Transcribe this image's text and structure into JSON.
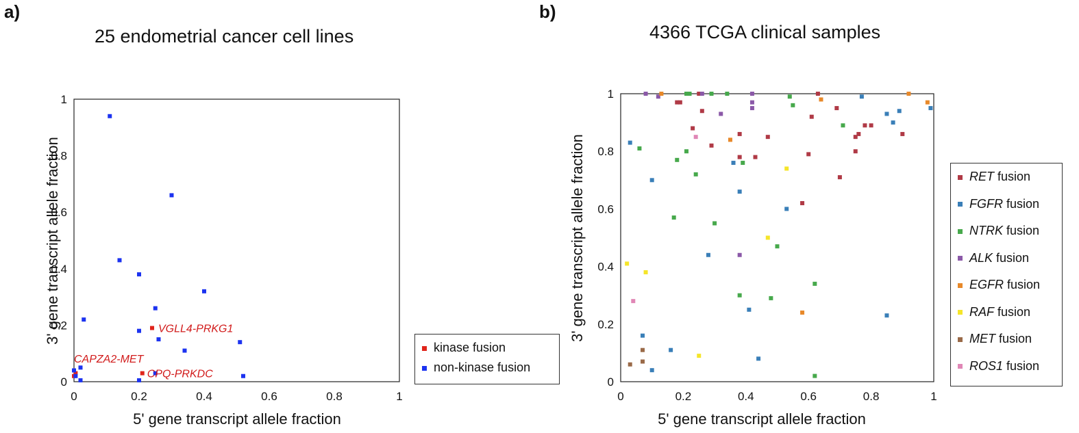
{
  "panel_a_label": "a)",
  "panel_b_label": "b)",
  "chart_data": [
    {
      "type": "scatter",
      "title": "25 endometrial cancer cell lines",
      "xlabel": "5' gene transcript allele fraction",
      "ylabel": "3' gene transcript allele fraction",
      "xlim": [
        0,
        1
      ],
      "ylim": [
        0,
        1
      ],
      "xticks": [
        "0",
        "0.2",
        "0.4",
        "0.6",
        "0.8",
        "1"
      ],
      "yticks": [
        "0",
        "0.2",
        "0.4",
        "0.6",
        "0.8",
        "1"
      ],
      "series": [
        {
          "name": "kinase fusion",
          "color": "#e0241b",
          "points": [
            [
              0.24,
              0.19
            ],
            [
              0.21,
              0.03
            ],
            [
              0.005,
              0.03
            ],
            [
              0.0,
              0.02
            ]
          ]
        },
        {
          "name": "non-kinase fusion",
          "color": "#1c33f0",
          "points": [
            [
              0.11,
              0.94
            ],
            [
              0.3,
              0.66
            ],
            [
              0.14,
              0.43
            ],
            [
              0.2,
              0.38
            ],
            [
              0.4,
              0.32
            ],
            [
              0.25,
              0.26
            ],
            [
              0.03,
              0.22
            ],
            [
              0.2,
              0.18
            ],
            [
              0.26,
              0.15
            ],
            [
              0.51,
              0.14
            ],
            [
              0.34,
              0.11
            ],
            [
              0.02,
              0.05
            ],
            [
              0.0,
              0.04
            ],
            [
              0.25,
              0.03
            ],
            [
              0.52,
              0.02
            ],
            [
              0.005,
              0.02
            ],
            [
              0.02,
              0.005
            ],
            [
              0.2,
              0.005
            ]
          ]
        }
      ],
      "annotations": [
        {
          "text": "VGLL4-PRKG1",
          "x": 0.24,
          "y": 0.19
        },
        {
          "text": "CAPZA2-MET",
          "x": 0.0,
          "y": 0.06
        },
        {
          "text": "CPQ-PRKDC",
          "x": 0.21,
          "y": 0.03
        }
      ],
      "legend_position": "right"
    },
    {
      "type": "scatter",
      "title": "4366 TCGA clinical samples",
      "xlabel": "5' gene transcript allele fraction",
      "ylabel": "3' gene transcript allele fraction",
      "xlim": [
        0,
        1
      ],
      "ylim": [
        0,
        1
      ],
      "xticks": [
        "0",
        "0.2",
        "0.4",
        "0.6",
        "0.8",
        "1"
      ],
      "yticks": [
        "0",
        "0.2",
        "0.4",
        "0.6",
        "0.8",
        "1"
      ],
      "legend_suffix": "fusion",
      "series": [
        {
          "name": "RET",
          "color": "#b03a46",
          "points": [
            [
              0.18,
              0.97
            ],
            [
              0.19,
              0.97
            ],
            [
              0.25,
              1.0
            ],
            [
              0.26,
              0.94
            ],
            [
              0.23,
              0.88
            ],
            [
              0.29,
              0.82
            ],
            [
              0.38,
              0.86
            ],
            [
              0.38,
              0.78
            ],
            [
              0.47,
              0.85
            ],
            [
              0.43,
              0.78
            ],
            [
              0.61,
              0.92
            ],
            [
              0.63,
              1.0
            ],
            [
              0.69,
              0.95
            ],
            [
              0.7,
              0.71
            ],
            [
              0.6,
              0.79
            ],
            [
              0.58,
              0.62
            ],
            [
              0.75,
              0.85
            ],
            [
              0.76,
              0.86
            ],
            [
              0.75,
              0.8
            ],
            [
              0.78,
              0.89
            ],
            [
              0.8,
              0.89
            ],
            [
              0.9,
              0.86
            ]
          ]
        },
        {
          "name": "FGFR",
          "color": "#3a7fb8",
          "points": [
            [
              0.03,
              0.83
            ],
            [
              0.1,
              0.7
            ],
            [
              0.36,
              0.76
            ],
            [
              0.38,
              0.66
            ],
            [
              0.53,
              0.6
            ],
            [
              0.28,
              0.44
            ],
            [
              0.41,
              0.25
            ],
            [
              0.16,
              0.11
            ],
            [
              0.07,
              0.16
            ],
            [
              0.1,
              0.04
            ],
            [
              0.44,
              0.08
            ],
            [
              0.85,
              0.23
            ],
            [
              0.77,
              0.99
            ],
            [
              0.85,
              0.93
            ],
            [
              0.87,
              0.9
            ],
            [
              0.89,
              0.94
            ],
            [
              0.99,
              0.95
            ]
          ]
        },
        {
          "name": "NTRK",
          "color": "#47a94c",
          "points": [
            [
              0.21,
              1.0
            ],
            [
              0.22,
              1.0
            ],
            [
              0.29,
              1.0
            ],
            [
              0.34,
              1.0
            ],
            [
              0.54,
              0.99
            ],
            [
              0.55,
              0.96
            ],
            [
              0.21,
              0.8
            ],
            [
              0.06,
              0.81
            ],
            [
              0.18,
              0.77
            ],
            [
              0.39,
              0.76
            ],
            [
              0.24,
              0.72
            ],
            [
              0.17,
              0.57
            ],
            [
              0.3,
              0.55
            ],
            [
              0.5,
              0.47
            ],
            [
              0.38,
              0.3
            ],
            [
              0.48,
              0.29
            ],
            [
              0.62,
              0.34
            ],
            [
              0.62,
              0.02
            ],
            [
              0.71,
              0.89
            ]
          ]
        },
        {
          "name": "ALK",
          "color": "#8b59a8",
          "points": [
            [
              0.08,
              1.0
            ],
            [
              0.12,
              0.99
            ],
            [
              0.26,
              1.0
            ],
            [
              0.32,
              0.93
            ],
            [
              0.42,
              1.0
            ],
            [
              0.42,
              0.97
            ],
            [
              0.42,
              0.95
            ],
            [
              0.38,
              0.44
            ]
          ]
        },
        {
          "name": "EGFR",
          "color": "#e8892a",
          "points": [
            [
              0.13,
              1.0
            ],
            [
              0.35,
              0.84
            ],
            [
              0.64,
              0.98
            ],
            [
              0.58,
              0.24
            ],
            [
              0.92,
              1.0
            ],
            [
              0.98,
              0.97
            ]
          ]
        },
        {
          "name": "RAF",
          "color": "#f5e52a",
          "points": [
            [
              0.02,
              0.41
            ],
            [
              0.08,
              0.38
            ],
            [
              0.47,
              0.5
            ],
            [
              0.53,
              0.74
            ],
            [
              0.25,
              0.09
            ]
          ]
        },
        {
          "name": "MET",
          "color": "#9a6a48",
          "points": [
            [
              0.03,
              0.06
            ],
            [
              0.07,
              0.07
            ],
            [
              0.07,
              0.11
            ]
          ]
        },
        {
          "name": "ROS1",
          "color": "#e087b6",
          "points": [
            [
              0.04,
              0.28
            ],
            [
              0.24,
              0.85
            ]
          ]
        }
      ],
      "legend_position": "right"
    }
  ]
}
